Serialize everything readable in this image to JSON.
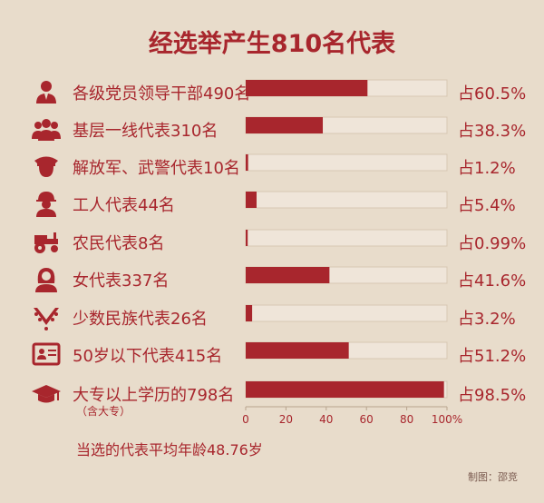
{
  "title": "经选举产生810名代表",
  "footer": {
    "average_age": "当选的代表平均年龄48.76岁",
    "credit": "制图：邵竞"
  },
  "colors": {
    "bar": "#a8262d",
    "track": "#efe5d9",
    "text": "#a8262d",
    "background": "#e8dccb"
  },
  "chart_data": {
    "type": "bar",
    "orientation": "horizontal",
    "categories": [
      "各级党员领导干部490名",
      "基层一线代表310名",
      "解放军、武警代表10名",
      "工人代表44名",
      "农民代表8名",
      "女代表337名",
      "少数民族代表26名",
      "50岁以下代表415名",
      "大专以上学历的798名"
    ],
    "category_notes": [
      "",
      "",
      "",
      "",
      "",
      "",
      "",
      "",
      "（含大专）"
    ],
    "values": [
      60.5,
      38.3,
      1.2,
      5.4,
      0.99,
      41.6,
      3.2,
      51.2,
      98.5
    ],
    "value_labels": [
      "占60.5%",
      "占38.3%",
      "占1.2%",
      "占5.4%",
      "占0.99%",
      "占41.6%",
      "占3.2%",
      "占51.2%",
      "占98.5%"
    ],
    "icons": [
      "official-icon",
      "group-icon",
      "soldier-icon",
      "worker-icon",
      "tractor-icon",
      "woman-icon",
      "ethnic-collar-icon",
      "id-card-icon",
      "graduation-cap-icon"
    ],
    "xlim": [
      0,
      100
    ],
    "xticks": [
      "0",
      "20",
      "40",
      "60",
      "80",
      "100%"
    ],
    "grid": false,
    "legend": "none"
  }
}
